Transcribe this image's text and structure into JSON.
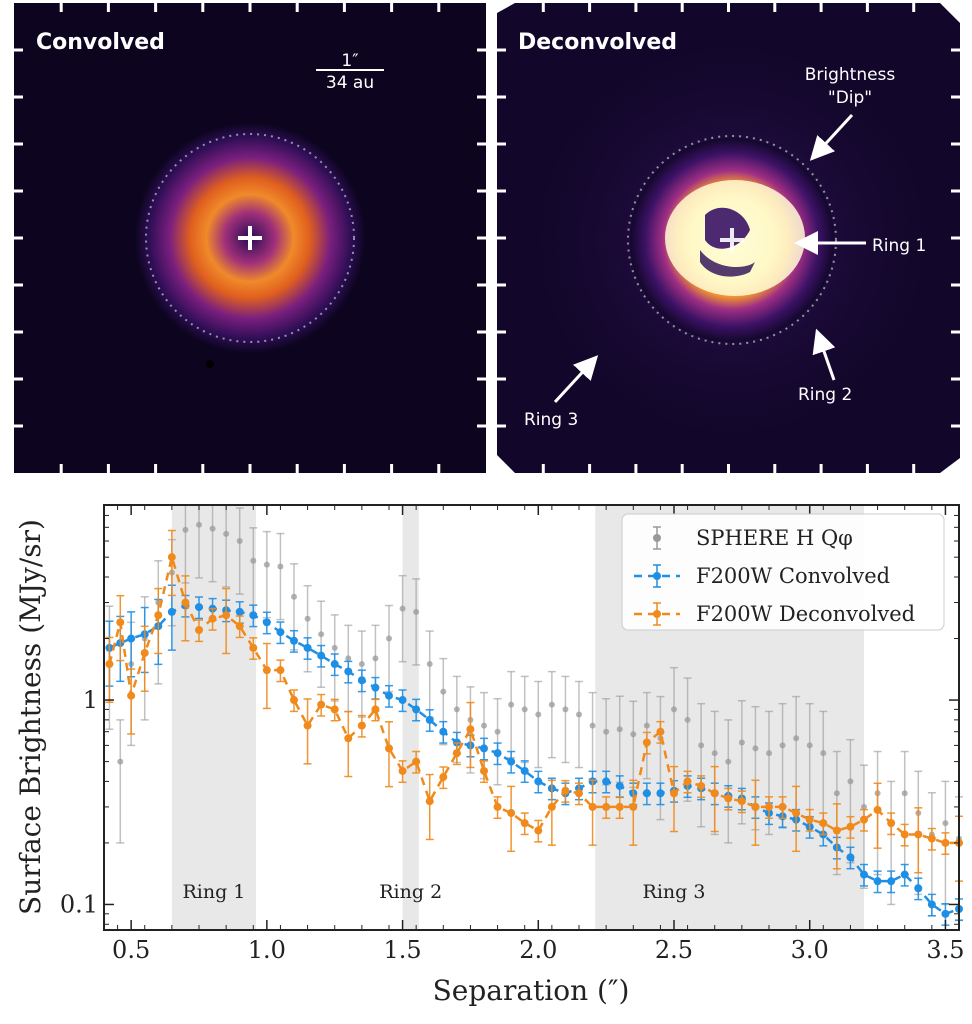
{
  "images": {
    "left": {
      "label": "Convolved",
      "scalebar_top": "1″",
      "scalebar_bottom": "34 au"
    },
    "right": {
      "label": "Deconvolved",
      "annotations": {
        "dip": "Brightness",
        "dip2": "\"Dip\"",
        "ring1": "Ring 1",
        "ring2": "Ring 2",
        "ring3": "Ring 3"
      }
    }
  },
  "chart_data": {
    "type": "line",
    "xlabel": "Separation (″)",
    "ylabel": "Surface Brightness (MJy/sr)",
    "xlim": [
      0.4,
      3.55
    ],
    "ylim": [
      0.075,
      9.0
    ],
    "yscale": "log",
    "xticks": [
      "0.5",
      "1.0",
      "1.5",
      "2.0",
      "2.5",
      "3.0",
      "3.5"
    ],
    "yticks": [
      "0.1",
      "1"
    ],
    "legend_position": "top-right",
    "bands": [
      {
        "label": "Ring 1",
        "x0": 0.65,
        "x1": 0.96
      },
      {
        "label": "Ring 2",
        "x0": 1.5,
        "x1": 1.56
      },
      {
        "label": "Ring 3",
        "x0": 2.21,
        "x1": 3.2
      }
    ],
    "series": [
      {
        "name": "SPHERE H Qφ",
        "color": "#999999",
        "x": [
          0.42,
          0.46,
          0.5,
          0.55,
          0.6,
          0.65,
          0.7,
          0.75,
          0.8,
          0.85,
          0.9,
          0.95,
          1.0,
          1.05,
          1.1,
          1.15,
          1.2,
          1.25,
          1.3,
          1.35,
          1.4,
          1.45,
          1.5,
          1.55,
          1.6,
          1.65,
          1.7,
          1.75,
          1.8,
          1.85,
          1.9,
          1.95,
          2.0,
          2.05,
          2.1,
          2.15,
          2.2,
          2.25,
          2.3,
          2.35,
          2.4,
          2.45,
          2.5,
          2.55,
          2.6,
          2.65,
          2.7,
          2.75,
          2.8,
          2.85,
          2.9,
          2.95,
          3.0,
          3.05,
          3.1,
          3.15,
          3.2,
          3.25,
          3.3,
          3.35,
          3.4,
          3.45,
          3.5,
          3.55
        ],
        "values": [
          1.8,
          0.5,
          1.5,
          2.0,
          3.0,
          4.2,
          6.8,
          7.2,
          6.9,
          6.5,
          6.0,
          4.8,
          4.6,
          4.5,
          3.2,
          2.5,
          2.1,
          1.8,
          1.6,
          1.5,
          1.6,
          2.0,
          2.8,
          2.7,
          1.5,
          1.1,
          0.9,
          0.8,
          0.75,
          0.7,
          0.95,
          0.9,
          0.85,
          0.95,
          0.9,
          0.85,
          0.75,
          0.7,
          0.72,
          0.68,
          0.75,
          0.65,
          0.9,
          0.8,
          0.6,
          0.55,
          0.5,
          0.62,
          0.58,
          0.55,
          0.6,
          0.65,
          0.6,
          0.55,
          0.35,
          0.4,
          0.3,
          0.35,
          0.25,
          0.35,
          0.28,
          0.22,
          0.25,
          0.21
        ]
      },
      {
        "name": "F200W Convolved",
        "color": "#1f8fe5",
        "x": [
          0.42,
          0.46,
          0.5,
          0.55,
          0.6,
          0.65,
          0.7,
          0.75,
          0.8,
          0.85,
          0.9,
          0.95,
          1.0,
          1.05,
          1.1,
          1.15,
          1.2,
          1.25,
          1.3,
          1.35,
          1.4,
          1.45,
          1.5,
          1.55,
          1.6,
          1.65,
          1.7,
          1.75,
          1.8,
          1.85,
          1.9,
          1.95,
          2.0,
          2.05,
          2.1,
          2.15,
          2.2,
          2.25,
          2.3,
          2.35,
          2.4,
          2.45,
          2.5,
          2.55,
          2.6,
          2.65,
          2.7,
          2.75,
          2.8,
          2.85,
          2.9,
          2.95,
          3.0,
          3.05,
          3.1,
          3.15,
          3.2,
          3.25,
          3.3,
          3.35,
          3.4,
          3.45,
          3.5,
          3.55
        ],
        "values": [
          1.8,
          1.9,
          2.0,
          2.1,
          2.3,
          2.7,
          2.9,
          2.85,
          2.8,
          2.75,
          2.7,
          2.6,
          2.4,
          2.15,
          1.95,
          1.8,
          1.65,
          1.5,
          1.38,
          1.25,
          1.15,
          1.05,
          1.0,
          0.9,
          0.8,
          0.7,
          0.62,
          0.6,
          0.58,
          0.55,
          0.5,
          0.45,
          0.4,
          0.37,
          0.35,
          0.37,
          0.4,
          0.4,
          0.38,
          0.35,
          0.35,
          0.35,
          0.36,
          0.38,
          0.37,
          0.35,
          0.34,
          0.33,
          0.3,
          0.28,
          0.27,
          0.26,
          0.24,
          0.22,
          0.19,
          0.17,
          0.14,
          0.13,
          0.13,
          0.14,
          0.12,
          0.1,
          0.09,
          0.095
        ]
      },
      {
        "name": "F200W Deconvolved",
        "color": "#f08a1c",
        "x": [
          0.42,
          0.46,
          0.5,
          0.55,
          0.6,
          0.65,
          0.7,
          0.75,
          0.8,
          0.85,
          0.9,
          0.95,
          1.0,
          1.05,
          1.1,
          1.15,
          1.2,
          1.25,
          1.3,
          1.35,
          1.4,
          1.45,
          1.5,
          1.55,
          1.6,
          1.65,
          1.7,
          1.75,
          1.8,
          1.85,
          1.9,
          1.95,
          2.0,
          2.05,
          2.1,
          2.15,
          2.2,
          2.25,
          2.3,
          2.35,
          2.4,
          2.45,
          2.5,
          2.55,
          2.6,
          2.65,
          2.7,
          2.75,
          2.8,
          2.85,
          2.9,
          2.95,
          3.0,
          3.05,
          3.1,
          3.15,
          3.2,
          3.25,
          3.3,
          3.35,
          3.4,
          3.45,
          3.5,
          3.55
        ],
        "values": [
          1.5,
          2.4,
          1.05,
          1.7,
          2.6,
          5.0,
          3.0,
          2.2,
          2.5,
          2.6,
          2.3,
          1.8,
          1.4,
          1.4,
          1.0,
          0.75,
          0.95,
          0.9,
          0.65,
          0.75,
          0.9,
          0.58,
          0.45,
          0.5,
          0.32,
          0.42,
          0.55,
          0.72,
          0.45,
          0.3,
          0.28,
          0.25,
          0.23,
          0.3,
          0.36,
          0.35,
          0.3,
          0.3,
          0.3,
          0.3,
          0.62,
          0.7,
          0.35,
          0.4,
          0.38,
          0.35,
          0.33,
          0.32,
          0.3,
          0.3,
          0.3,
          0.28,
          0.26,
          0.25,
          0.23,
          0.24,
          0.26,
          0.29,
          0.25,
          0.22,
          0.22,
          0.21,
          0.2,
          0.2
        ]
      }
    ]
  }
}
